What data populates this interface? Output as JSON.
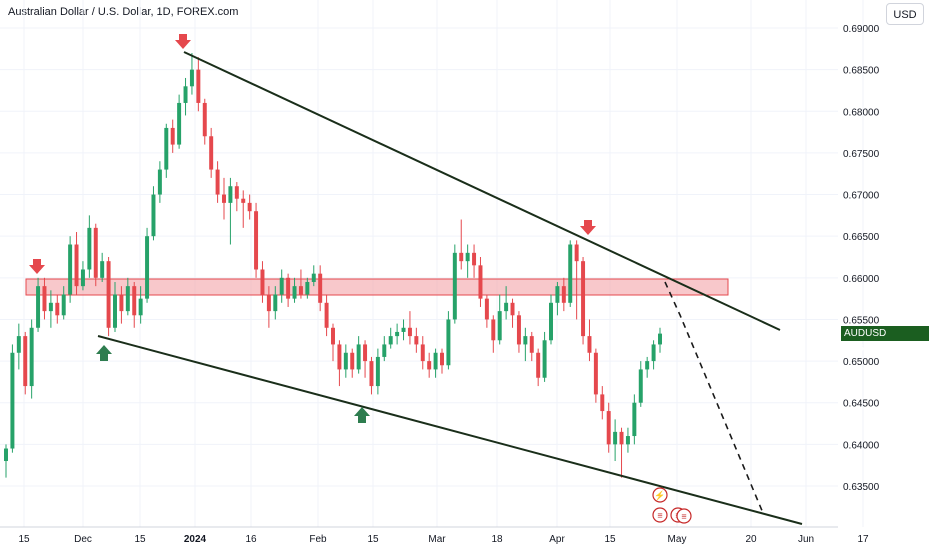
{
  "header": {
    "title": "Australian Dollar / U.S. Dollar, 1D, FOREX.com",
    "currency_button": "USD"
  },
  "colors": {
    "up": "#26a269",
    "down": "#e5484d",
    "trendline": "#1a2e1a",
    "zone": "#f4a3a8",
    "arrow_down": "#e5484d",
    "arrow_up": "#2e7d4f",
    "badge": "#1b5e20"
  },
  "price_badge": {
    "symbol": "AUDUSD",
    "price": "0.65332"
  },
  "chart_data": {
    "type": "candlestick",
    "y_ticks": [
      "0.69000",
      "0.68500",
      "0.68000",
      "0.67500",
      "0.67000",
      "0.66500",
      "0.66000",
      "0.65500",
      "0.65000",
      "0.64500",
      "0.64000",
      "0.63500"
    ],
    "x_ticks": [
      "15",
      "Dec",
      "15",
      "2024",
      "16",
      "Feb",
      "15",
      "Mar",
      "18",
      "Apr",
      "15",
      "May",
      "20",
      "Jun",
      "17"
    ],
    "ylim": [
      0.63,
      0.6905
    ],
    "last_price": 0.65332,
    "resistance_zone": [
      0.6595,
      0.6576
    ],
    "candles": [
      [
        0.638,
        0.6395,
        0.636,
        0.64,
        1
      ],
      [
        0.6395,
        0.651,
        0.639,
        0.652,
        1
      ],
      [
        0.651,
        0.653,
        0.649,
        0.6545,
        1
      ],
      [
        0.653,
        0.647,
        0.646,
        0.6535,
        0
      ],
      [
        0.647,
        0.654,
        0.6455,
        0.655,
        1
      ],
      [
        0.654,
        0.659,
        0.6535,
        0.66,
        1
      ],
      [
        0.659,
        0.656,
        0.655,
        0.66,
        0
      ],
      [
        0.656,
        0.657,
        0.654,
        0.6585,
        1
      ],
      [
        0.657,
        0.6555,
        0.6545,
        0.658,
        0
      ],
      [
        0.6555,
        0.658,
        0.655,
        0.659,
        1
      ],
      [
        0.658,
        0.664,
        0.657,
        0.665,
        1
      ],
      [
        0.664,
        0.659,
        0.658,
        0.6655,
        0
      ],
      [
        0.659,
        0.661,
        0.6585,
        0.662,
        1
      ],
      [
        0.661,
        0.666,
        0.66,
        0.6675,
        1
      ],
      [
        0.666,
        0.66,
        0.659,
        0.6665,
        0
      ],
      [
        0.66,
        0.662,
        0.6595,
        0.663,
        1
      ],
      [
        0.662,
        0.654,
        0.653,
        0.6625,
        0
      ],
      [
        0.654,
        0.658,
        0.6535,
        0.6595,
        1
      ],
      [
        0.658,
        0.656,
        0.6545,
        0.659,
        0
      ],
      [
        0.656,
        0.659,
        0.6555,
        0.66,
        1
      ],
      [
        0.659,
        0.6555,
        0.654,
        0.6595,
        0
      ],
      [
        0.6555,
        0.6575,
        0.6545,
        0.659,
        1
      ],
      [
        0.6575,
        0.665,
        0.657,
        0.666,
        1
      ],
      [
        0.665,
        0.67,
        0.6645,
        0.671,
        1
      ],
      [
        0.67,
        0.673,
        0.669,
        0.674,
        1
      ],
      [
        0.673,
        0.678,
        0.672,
        0.6785,
        1
      ],
      [
        0.678,
        0.676,
        0.675,
        0.679,
        0
      ],
      [
        0.676,
        0.681,
        0.6755,
        0.682,
        1
      ],
      [
        0.681,
        0.683,
        0.6795,
        0.684,
        1
      ],
      [
        0.683,
        0.685,
        0.682,
        0.687,
        1
      ],
      [
        0.685,
        0.681,
        0.68,
        0.6865,
        0
      ],
      [
        0.681,
        0.677,
        0.676,
        0.6815,
        0
      ],
      [
        0.677,
        0.673,
        0.672,
        0.678,
        0
      ],
      [
        0.673,
        0.67,
        0.669,
        0.674,
        0
      ],
      [
        0.67,
        0.669,
        0.667,
        0.672,
        0
      ],
      [
        0.669,
        0.671,
        0.664,
        0.672,
        1
      ],
      [
        0.671,
        0.6695,
        0.668,
        0.6715,
        0
      ],
      [
        0.6695,
        0.669,
        0.666,
        0.6705,
        0
      ],
      [
        0.669,
        0.668,
        0.667,
        0.67,
        0
      ],
      [
        0.668,
        0.661,
        0.66,
        0.669,
        0
      ],
      [
        0.661,
        0.658,
        0.657,
        0.662,
        0
      ],
      [
        0.658,
        0.656,
        0.654,
        0.659,
        0
      ],
      [
        0.656,
        0.658,
        0.655,
        0.659,
        1
      ],
      [
        0.658,
        0.66,
        0.657,
        0.661,
        1
      ],
      [
        0.66,
        0.6575,
        0.6565,
        0.6605,
        0
      ],
      [
        0.6575,
        0.659,
        0.657,
        0.66,
        1
      ],
      [
        0.659,
        0.658,
        0.6575,
        0.661,
        0
      ],
      [
        0.658,
        0.6595,
        0.6575,
        0.66,
        1
      ],
      [
        0.6595,
        0.6605,
        0.659,
        0.6615,
        1
      ],
      [
        0.6605,
        0.657,
        0.656,
        0.6615,
        0
      ],
      [
        0.657,
        0.654,
        0.653,
        0.658,
        0
      ],
      [
        0.654,
        0.652,
        0.65,
        0.6545,
        0
      ],
      [
        0.652,
        0.649,
        0.647,
        0.6525,
        0
      ],
      [
        0.649,
        0.651,
        0.648,
        0.652,
        1
      ],
      [
        0.651,
        0.649,
        0.648,
        0.6515,
        0
      ],
      [
        0.649,
        0.652,
        0.6485,
        0.653,
        1
      ],
      [
        0.652,
        0.65,
        0.648,
        0.6525,
        0
      ],
      [
        0.65,
        0.647,
        0.646,
        0.6505,
        0
      ],
      [
        0.647,
        0.6505,
        0.646,
        0.6515,
        1
      ],
      [
        0.6505,
        0.652,
        0.65,
        0.653,
        1
      ],
      [
        0.652,
        0.653,
        0.6515,
        0.654,
        1
      ],
      [
        0.653,
        0.6535,
        0.652,
        0.6545,
        1
      ],
      [
        0.6535,
        0.654,
        0.6525,
        0.655,
        1
      ],
      [
        0.654,
        0.653,
        0.652,
        0.656,
        0
      ],
      [
        0.653,
        0.652,
        0.651,
        0.654,
        0
      ],
      [
        0.652,
        0.65,
        0.649,
        0.653,
        0
      ],
      [
        0.65,
        0.649,
        0.648,
        0.651,
        0
      ],
      [
        0.649,
        0.651,
        0.648,
        0.6515,
        1
      ],
      [
        0.651,
        0.6495,
        0.6485,
        0.6515,
        0
      ],
      [
        0.6495,
        0.655,
        0.649,
        0.656,
        1
      ],
      [
        0.655,
        0.663,
        0.6545,
        0.664,
        1
      ],
      [
        0.663,
        0.662,
        0.661,
        0.667,
        0
      ],
      [
        0.662,
        0.663,
        0.66,
        0.664,
        1
      ],
      [
        0.663,
        0.6615,
        0.66,
        0.664,
        0
      ],
      [
        0.6615,
        0.6575,
        0.6565,
        0.6625,
        0
      ],
      [
        0.6575,
        0.655,
        0.654,
        0.658,
        0
      ],
      [
        0.655,
        0.6525,
        0.651,
        0.6555,
        0
      ],
      [
        0.6525,
        0.656,
        0.652,
        0.658,
        1
      ],
      [
        0.656,
        0.657,
        0.655,
        0.659,
        1
      ],
      [
        0.657,
        0.6555,
        0.654,
        0.6575,
        0
      ],
      [
        0.6555,
        0.652,
        0.651,
        0.656,
        0
      ],
      [
        0.652,
        0.653,
        0.65,
        0.654,
        1
      ],
      [
        0.653,
        0.651,
        0.65,
        0.6535,
        0
      ],
      [
        0.651,
        0.648,
        0.647,
        0.6515,
        0
      ],
      [
        0.648,
        0.6525,
        0.6475,
        0.6535,
        1
      ],
      [
        0.6525,
        0.657,
        0.652,
        0.658,
        1
      ],
      [
        0.657,
        0.659,
        0.6555,
        0.6595,
        1
      ],
      [
        0.659,
        0.657,
        0.656,
        0.66,
        0
      ],
      [
        0.657,
        0.664,
        0.6565,
        0.6645,
        1
      ],
      [
        0.664,
        0.662,
        0.655,
        0.6645,
        0
      ],
      [
        0.662,
        0.653,
        0.652,
        0.6625,
        0
      ],
      [
        0.653,
        0.651,
        0.65,
        0.655,
        0
      ],
      [
        0.651,
        0.646,
        0.645,
        0.6515,
        0
      ],
      [
        0.646,
        0.644,
        0.643,
        0.647,
        0
      ],
      [
        0.644,
        0.64,
        0.639,
        0.645,
        0
      ],
      [
        0.64,
        0.6415,
        0.638,
        0.643,
        1
      ],
      [
        0.6415,
        0.64,
        0.636,
        0.642,
        0
      ],
      [
        0.64,
        0.641,
        0.639,
        0.642,
        1
      ],
      [
        0.641,
        0.645,
        0.64,
        0.646,
        1
      ],
      [
        0.645,
        0.649,
        0.6445,
        0.65,
        1
      ],
      [
        0.649,
        0.65,
        0.648,
        0.6505,
        1
      ],
      [
        0.65,
        0.652,
        0.649,
        0.6525,
        1
      ],
      [
        0.652,
        0.6533,
        0.651,
        0.654,
        1
      ]
    ]
  }
}
